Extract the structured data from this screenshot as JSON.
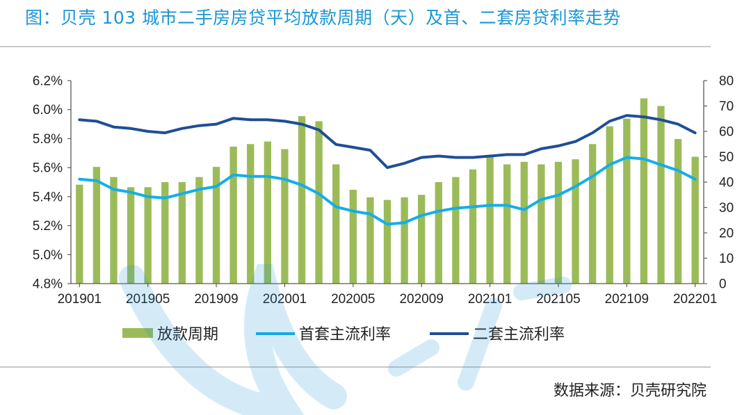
{
  "title": "图：贝壳 103 城市二手房房贷平均放款周期（天）及首、二套房贷利率走势",
  "source": "数据来源：贝壳研究院",
  "colors": {
    "title": "#1a96d6",
    "bar": "#9bbb59",
    "first_rate": "#14aeea",
    "second_rate": "#1f4e96"
  },
  "chart_data": {
    "type": "bar",
    "x": [
      "201901",
      "201902",
      "201903",
      "201904",
      "201905",
      "201906",
      "201907",
      "201908",
      "201909",
      "201910",
      "201911",
      "201912",
      "202001",
      "202002",
      "202003",
      "202004",
      "202005",
      "202006",
      "202007",
      "202008",
      "202009",
      "202010",
      "202011",
      "202012",
      "202101",
      "202102",
      "202103",
      "202104",
      "202105",
      "202106",
      "202107",
      "202108",
      "202109",
      "202110",
      "202111",
      "202112",
      "202201"
    ],
    "x_tick_labels": [
      "201901",
      "201905",
      "201909",
      "202001",
      "202005",
      "202009",
      "202101",
      "202105",
      "202109",
      "202201"
    ],
    "series": [
      {
        "name": "放款周期",
        "type": "bar",
        "axis": "right",
        "values": [
          39,
          46,
          42,
          38,
          38,
          40,
          40,
          42,
          46,
          54,
          55,
          56,
          53,
          66,
          64,
          47,
          37,
          34,
          33,
          34,
          35,
          40,
          42,
          45,
          50,
          47,
          48,
          47,
          48,
          49,
          55,
          62,
          65,
          73,
          70,
          57,
          50
        ]
      },
      {
        "name": "首套主流利率",
        "type": "line",
        "axis": "left",
        "values": [
          5.52,
          5.51,
          5.45,
          5.43,
          5.4,
          5.39,
          5.42,
          5.45,
          5.47,
          5.55,
          5.54,
          5.54,
          5.52,
          5.48,
          5.42,
          5.33,
          5.3,
          5.28,
          5.21,
          5.22,
          5.27,
          5.3,
          5.32,
          5.33,
          5.34,
          5.34,
          5.31,
          5.38,
          5.41,
          5.47,
          5.54,
          5.62,
          5.67,
          5.66,
          5.62,
          5.58,
          5.52
        ]
      },
      {
        "name": "二套主流利率",
        "type": "line",
        "axis": "left",
        "values": [
          5.93,
          5.92,
          5.88,
          5.87,
          5.85,
          5.84,
          5.87,
          5.89,
          5.9,
          5.94,
          5.93,
          5.93,
          5.92,
          5.9,
          5.86,
          5.76,
          5.74,
          5.72,
          5.6,
          5.63,
          5.67,
          5.68,
          5.67,
          5.67,
          5.68,
          5.69,
          5.69,
          5.73,
          5.75,
          5.78,
          5.84,
          5.92,
          5.96,
          5.95,
          5.93,
          5.9,
          5.84
        ]
      }
    ],
    "y_left": {
      "ticks": [
        "4.8%",
        "5.0%",
        "5.2%",
        "5.4%",
        "5.6%",
        "5.8%",
        "6.0%",
        "6.2%"
      ],
      "min": 4.8,
      "max": 6.2
    },
    "y_right": {
      "ticks": [
        "0",
        "10",
        "20",
        "30",
        "40",
        "50",
        "60",
        "70",
        "80"
      ],
      "min": 0,
      "max": 80
    },
    "legend_position": "bottom",
    "grid": false
  }
}
